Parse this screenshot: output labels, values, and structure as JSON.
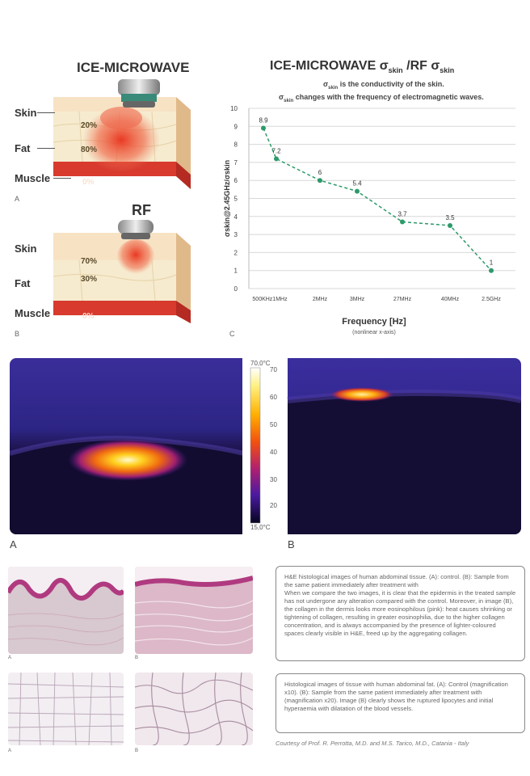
{
  "diagrams": {
    "top_title": "ICE-MICROWAVE",
    "rf_title": "RF",
    "layers": [
      "Skin",
      "Fat",
      "Muscle"
    ],
    "microwave_pcts": [
      "20%",
      "80%",
      "0%"
    ],
    "rf_pcts": [
      "70%",
      "30%",
      "0%"
    ],
    "panel_a": "A",
    "panel_b": "B",
    "panel_c": "C"
  },
  "conductivity": {
    "title_main": "ICE-MICROWAVE σ",
    "title_sub1": "skin",
    "title_mid": " /RF σ",
    "title_sub2": "skin",
    "note1_sym": "σ",
    "note1_sub": "skin",
    "note1_text": " is the conductivity of the skin.",
    "note2_sym": "σ",
    "note2_sub": "skin",
    "note2_text": " changes with the frequency of electromagnetic waves."
  },
  "chart_data": {
    "type": "line",
    "categories": [
      "500KHz",
      "1MHz",
      "2MHz",
      "3MHz",
      "27MHz",
      "40MHz",
      "2.5GHz"
    ],
    "x_tick_labels": [
      "500KHz1MHz",
      "2MHz",
      "3MHz",
      "27MHz",
      "40MHz",
      "2.5GHz"
    ],
    "values": [
      8.9,
      7.2,
      6,
      5.4,
      3.7,
      3.5,
      1
    ],
    "data_labels": [
      "8.9",
      "7.2",
      "6",
      "5.4",
      "3.7",
      "3.5",
      "1"
    ],
    "y_ticks": [
      "0",
      "1",
      "2",
      "3",
      "4",
      "5",
      "6",
      "7",
      "8",
      "9",
      "10"
    ],
    "ylim": [
      0,
      10
    ],
    "ylabel": "σskin@2.45GHz/σskin",
    "xlabel": "Frequency [Hz]",
    "xlabel_note": "(nonlinear x-axis)",
    "grid": true,
    "colors": {
      "line": "#2e9a6a",
      "point": "#2e9a6a",
      "grid": "#d8d8d8"
    }
  },
  "thermal": {
    "scale_top": "70,0°C",
    "scale_bottom": "15,0°C",
    "scale_ticks": [
      "70",
      "60",
      "50",
      "40",
      "30",
      "20"
    ],
    "label_a": "A",
    "label_b": "B"
  },
  "histology": {
    "text1": "H&E histological images of human abdominal tissue. (A): control. (B): Sample from the same patient immediately after treatment with\nWhen we compare the two images, it is clear that the epidermis in the treated sample has not undergone any alteration compared with the control. Moreover, in image (B), the collagen in the dermis looks more eosinophilous (pink): heat causes shrinking or tightening of collagen, resulting in greater eosinophilia, due to the higher collagen concentration, and is always accompanied by the presence of lighter-coloured spaces clearly visible in H&E, freed up by the aggregating collagen.",
    "text2": "Histological images of tissue with human abdominal fat. (A): Control (magnification x10). (B): Sample from the same patient immediately after treatment with                                    (magnification x20). Image (B) clearly shows the ruptured lipocytes and initial hyperaemia with dilatation of the blood vessels.",
    "credit": "Courtesy of Prof. R. Perrotta, M.D. and M.S. Tarico, M.D., Catania - Italy",
    "label_a": "A",
    "label_b": "B"
  }
}
